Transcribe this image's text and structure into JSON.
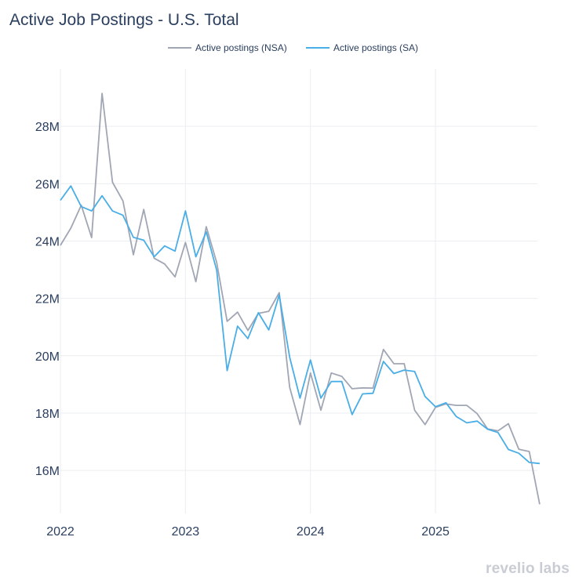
{
  "chart_data": {
    "type": "line",
    "title": "Active Job Postings - U.S. Total",
    "xlabel": "",
    "ylabel": "",
    "x_start": "2022-01",
    "x_ticks": [
      "2022",
      "2023",
      "2024",
      "2025"
    ],
    "y_ticks": [
      {
        "value": 16,
        "label": "16M"
      },
      {
        "value": 18,
        "label": "18M"
      },
      {
        "value": 20,
        "label": "20M"
      },
      {
        "value": 22,
        "label": "22M"
      },
      {
        "value": 24,
        "label": "24M"
      },
      {
        "value": 26,
        "label": "26M"
      },
      {
        "value": 28,
        "label": "28M"
      }
    ],
    "ylim": [
      14.5,
      30
    ],
    "unit": "M",
    "legend_position": "top-center",
    "grid": true,
    "series": [
      {
        "name": "Active postings (NSA)",
        "color": "#a1a6b4",
        "values": [
          23.85,
          24.45,
          25.25,
          24.12,
          29.15,
          26.05,
          25.4,
          23.52,
          25.1,
          23.4,
          23.2,
          22.75,
          23.95,
          22.58,
          24.5,
          23.25,
          21.2,
          21.52,
          20.88,
          21.48,
          21.55,
          22.2,
          18.9,
          17.6,
          19.4,
          18.1,
          19.4,
          19.28,
          18.85,
          18.88,
          18.87,
          20.22,
          19.72,
          19.72,
          18.1,
          17.6,
          18.2,
          18.32,
          18.27,
          18.27,
          17.98,
          17.45,
          17.38,
          17.63,
          16.74,
          16.66,
          14.82
        ]
      },
      {
        "name": "Active postings (SA)",
        "color": "#4aaee6",
        "values": [
          25.42,
          25.92,
          25.2,
          25.05,
          25.58,
          25.05,
          24.9,
          24.13,
          24.03,
          23.45,
          23.83,
          23.65,
          25.05,
          23.45,
          24.32,
          22.98,
          19.48,
          21.03,
          20.6,
          21.5,
          20.9,
          22.12,
          19.95,
          18.52,
          19.85,
          18.52,
          19.1,
          19.1,
          17.95,
          18.67,
          18.69,
          19.8,
          19.38,
          19.5,
          19.45,
          18.58,
          18.22,
          18.36,
          17.88,
          17.66,
          17.72,
          17.44,
          17.32,
          16.73,
          16.6,
          16.28,
          16.24
        ]
      }
    ]
  },
  "branding": {
    "watermark": "revelio labs"
  }
}
